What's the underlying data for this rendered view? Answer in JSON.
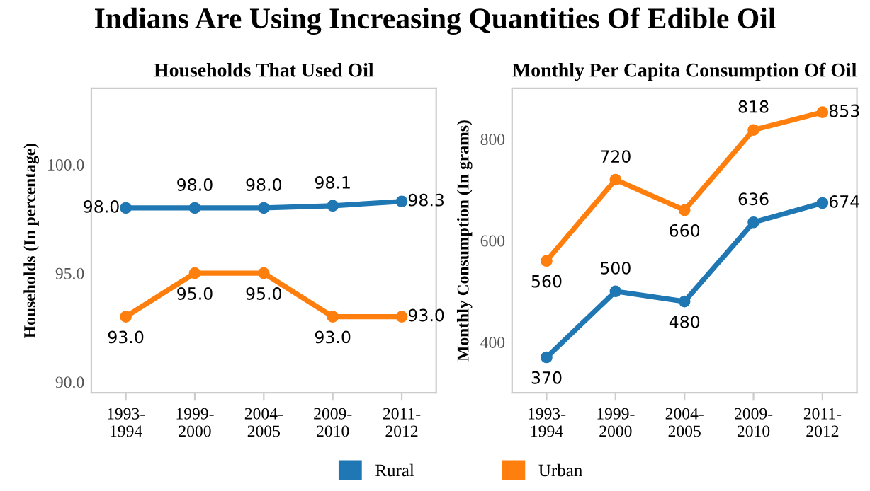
{
  "chart_data": [
    {
      "type": "line",
      "title": "Households That Used Oil",
      "ylabel": "Households (In percentage)",
      "annotations": [
        "Indians Are Using Increasing Quantities Of Edible Oil"
      ],
      "categories": [
        "1993-\n1994",
        "1999-\n2000",
        "2004-\n2005",
        "2009-\n2010",
        "2011-\n2012"
      ],
      "series": [
        {
          "name": "Rural",
          "color": "#1f77b4",
          "values": [
            98.0,
            98.0,
            98.0,
            98.1,
            98.3
          ],
          "value_labels": [
            "98.0",
            "98.0",
            "98.0",
            "98.1",
            "98.3"
          ]
        },
        {
          "name": "Urban",
          "color": "#ff7f0e",
          "values": [
            93.0,
            95.0,
            95.0,
            93.0,
            93.0
          ],
          "value_labels": [
            "93.0",
            "95.0",
            "95.0",
            "93.0",
            "93.0"
          ]
        }
      ],
      "ylim": [
        89.5,
        103.5
      ],
      "yticks": [
        {
          "value": 90,
          "label": "90.0"
        },
        {
          "value": 95,
          "label": "95.0"
        },
        {
          "value": 100,
          "label": "100.0"
        }
      ],
      "grid": false,
      "marker": "circle",
      "legend": "bottom"
    },
    {
      "type": "line",
      "title": "Monthly Per Capita Consumption Of Oil",
      "ylabel": "Monthly Consumption (In grams)",
      "categories": [
        "1993-\n1994",
        "1999-\n2000",
        "2004-\n2005",
        "2009-\n2010",
        "2011-\n2012"
      ],
      "series": [
        {
          "name": "Rural",
          "color": "#1f77b4",
          "values": [
            370,
            500,
            480,
            636,
            674
          ]
        },
        {
          "name": "Urban",
          "color": "#ff7f0e",
          "values": [
            560,
            720,
            660,
            818,
            853
          ]
        }
      ],
      "ylim": [
        300,
        900
      ],
      "yticks": [
        400,
        600,
        800
      ],
      "data_labels": true,
      "grid": false,
      "marker": "circle",
      "legend": "bottom"
    }
  ]
}
